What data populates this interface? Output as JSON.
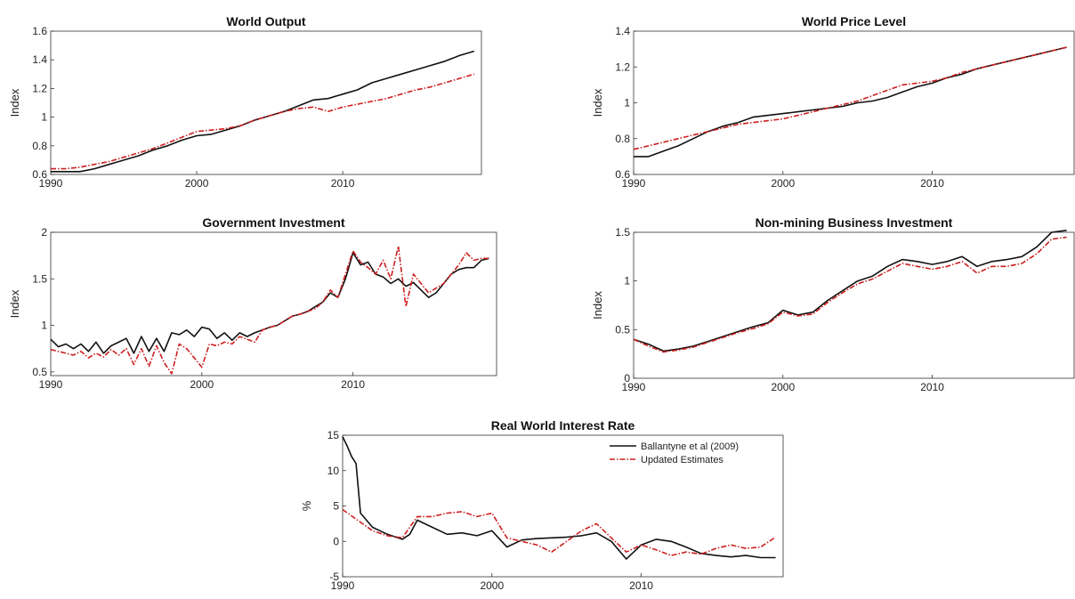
{
  "chart_data": [
    {
      "type": "line",
      "title": "World Output",
      "ylabel": "Index",
      "xlabel": "",
      "xlim": [
        1990,
        2019.5
      ],
      "ylim": [
        0.6,
        1.6
      ],
      "xticks": [
        1990,
        2000,
        2010
      ],
      "yticks": [
        "0.6",
        "0.8",
        "1",
        "1.2",
        "1.4",
        "1.6"
      ],
      "series": [
        {
          "style": "solid",
          "color": "#111111",
          "x": [
            1990,
            1991,
            1992,
            1993,
            1994,
            1995,
            1996,
            1997,
            1998,
            1999,
            2000,
            2001,
            2002,
            2003,
            2004,
            2005,
            2006,
            2007,
            2008,
            2009,
            2010,
            2011,
            2012,
            2013,
            2014,
            2015,
            2016,
            2017,
            2018,
            2019
          ],
          "y": [
            0.62,
            0.62,
            0.62,
            0.64,
            0.67,
            0.7,
            0.73,
            0.77,
            0.8,
            0.84,
            0.87,
            0.88,
            0.91,
            0.94,
            0.98,
            1.01,
            1.04,
            1.08,
            1.12,
            1.13,
            1.16,
            1.19,
            1.24,
            1.27,
            1.3,
            1.33,
            1.36,
            1.39,
            1.43,
            1.46
          ]
        },
        {
          "style": "dashed",
          "color": "#cc1f1f",
          "x": [
            1990,
            1991,
            1992,
            1993,
            1994,
            1995,
            1996,
            1997,
            1998,
            1999,
            2000,
            2001,
            2002,
            2003,
            2004,
            2005,
            2006,
            2007,
            2008,
            2009,
            2010,
            2011,
            2012,
            2013,
            2014,
            2015,
            2016,
            2017,
            2018,
            2019
          ],
          "y": [
            0.64,
            0.64,
            0.65,
            0.67,
            0.69,
            0.72,
            0.75,
            0.78,
            0.82,
            0.86,
            0.9,
            0.91,
            0.92,
            0.94,
            0.98,
            1.01,
            1.04,
            1.06,
            1.07,
            1.04,
            1.07,
            1.09,
            1.11,
            1.13,
            1.16,
            1.19,
            1.21,
            1.24,
            1.27,
            1.3
          ]
        }
      ]
    },
    {
      "type": "line",
      "title": "World Price Level",
      "ylabel": "Index",
      "xlabel": "",
      "xlim": [
        1990,
        2019.5
      ],
      "ylim": [
        0.6,
        1.4
      ],
      "xticks": [
        1990,
        2000,
        2010
      ],
      "yticks": [
        "0.6",
        "0.8",
        "1",
        "1.2",
        "1.4"
      ],
      "series": [
        {
          "style": "solid",
          "color": "#111111",
          "x": [
            1990,
            1991,
            1992,
            1993,
            1994,
            1995,
            1996,
            1997,
            1998,
            1999,
            2000,
            2001,
            2002,
            2003,
            2004,
            2005,
            2006,
            2007,
            2008,
            2009,
            2010,
            2011,
            2012,
            2013,
            2014,
            2015,
            2016,
            2017,
            2018,
            2019
          ],
          "y": [
            0.7,
            0.7,
            0.73,
            0.76,
            0.8,
            0.84,
            0.87,
            0.89,
            0.92,
            0.93,
            0.94,
            0.95,
            0.96,
            0.97,
            0.98,
            1.0,
            1.01,
            1.03,
            1.06,
            1.09,
            1.11,
            1.14,
            1.16,
            1.19,
            1.21,
            1.23,
            1.25,
            1.27,
            1.29,
            1.31
          ]
        },
        {
          "style": "dashed",
          "color": "#cc1f1f",
          "x": [
            1990,
            1991,
            1992,
            1993,
            1994,
            1995,
            1996,
            1997,
            1998,
            1999,
            2000,
            2001,
            2002,
            2003,
            2004,
            2005,
            2006,
            2007,
            2008,
            2009,
            2010,
            2011,
            2012,
            2013,
            2014,
            2015,
            2016,
            2017,
            2018,
            2019
          ],
          "y": [
            0.74,
            0.76,
            0.78,
            0.8,
            0.82,
            0.84,
            0.86,
            0.88,
            0.89,
            0.9,
            0.91,
            0.93,
            0.95,
            0.97,
            0.99,
            1.01,
            1.04,
            1.07,
            1.1,
            1.11,
            1.12,
            1.14,
            1.17,
            1.19,
            1.21,
            1.23,
            1.25,
            1.27,
            1.29,
            1.31
          ]
        }
      ]
    },
    {
      "type": "line",
      "title": "Government Investment",
      "ylabel": "Index",
      "xlabel": "",
      "xlim": [
        1990,
        2019.5
      ],
      "ylim": [
        0.46,
        2.0
      ],
      "xticks": [
        1990,
        2000,
        2010
      ],
      "yticks": [
        "0.5",
        "1",
        "1.5",
        "2"
      ],
      "series": [
        {
          "style": "solid",
          "color": "#111111",
          "x": [
            1990,
            1990.5,
            1991,
            1991.5,
            1992,
            1992.5,
            1993,
            1993.5,
            1994,
            1994.5,
            1995,
            1995.5,
            1996,
            1996.5,
            1997,
            1997.5,
            1998,
            1998.5,
            1999,
            1999.5,
            2000,
            2000.5,
            2001,
            2001.5,
            2002,
            2002.5,
            2003,
            2003.5,
            2004,
            2004.5,
            2005,
            2005.5,
            2006,
            2006.5,
            2007,
            2007.5,
            2008,
            2008.5,
            2009,
            2009.5,
            2010,
            2010.5,
            2011,
            2011.5,
            2012,
            2012.5,
            2013,
            2013.5,
            2014,
            2014.5,
            2015,
            2015.5,
            2016,
            2016.5,
            2017,
            2017.5,
            2018,
            2018.5,
            2019
          ],
          "y": [
            0.85,
            0.77,
            0.8,
            0.75,
            0.8,
            0.72,
            0.82,
            0.7,
            0.78,
            0.82,
            0.86,
            0.7,
            0.88,
            0.72,
            0.86,
            0.72,
            0.92,
            0.9,
            0.95,
            0.88,
            0.98,
            0.96,
            0.86,
            0.92,
            0.84,
            0.92,
            0.88,
            0.92,
            0.95,
            0.98,
            1.0,
            1.05,
            1.1,
            1.12,
            1.15,
            1.2,
            1.25,
            1.35,
            1.3,
            1.5,
            1.78,
            1.65,
            1.68,
            1.55,
            1.52,
            1.45,
            1.5,
            1.42,
            1.46,
            1.38,
            1.3,
            1.35,
            1.45,
            1.55,
            1.6,
            1.62,
            1.62,
            1.7,
            1.72
          ]
        },
        {
          "style": "dashed",
          "color": "#cc1f1f",
          "x": [
            1990,
            1990.5,
            1991,
            1991.5,
            1992,
            1992.5,
            1993,
            1993.5,
            1994,
            1994.5,
            1995,
            1995.5,
            1996,
            1996.5,
            1997,
            1997.5,
            1998,
            1998.5,
            1999,
            1999.5,
            2000,
            2000.5,
            2001,
            2001.5,
            2002,
            2002.5,
            2003,
            2003.5,
            2004,
            2004.5,
            2005,
            2005.5,
            2006,
            2006.5,
            2007,
            2007.5,
            2008,
            2008.5,
            2009,
            2009.5,
            2010,
            2010.5,
            2011,
            2011.5,
            2012,
            2012.5,
            2013,
            2013.5,
            2014,
            2014.5,
            2015,
            2015.5,
            2016,
            2016.5,
            2017,
            2017.5,
            2018,
            2018.5,
            2019
          ],
          "y": [
            0.74,
            0.72,
            0.7,
            0.68,
            0.72,
            0.65,
            0.7,
            0.66,
            0.74,
            0.68,
            0.75,
            0.58,
            0.75,
            0.56,
            0.78,
            0.6,
            0.48,
            0.8,
            0.75,
            0.65,
            0.55,
            0.8,
            0.78,
            0.82,
            0.8,
            0.88,
            0.85,
            0.82,
            0.95,
            0.98,
            1.0,
            1.05,
            1.1,
            1.12,
            1.15,
            1.18,
            1.25,
            1.38,
            1.3,
            1.55,
            1.8,
            1.68,
            1.62,
            1.55,
            1.7,
            1.5,
            1.85,
            1.2,
            1.55,
            1.45,
            1.35,
            1.4,
            1.45,
            1.55,
            1.65,
            1.78,
            1.7,
            1.72,
            1.72
          ]
        }
      ]
    },
    {
      "type": "line",
      "title": "Non-mining Business Investment",
      "ylabel": "Index",
      "xlabel": "",
      "xlim": [
        1990,
        2019.5
      ],
      "ylim": [
        0,
        1.5
      ],
      "xticks": [
        1990,
        2000,
        2010
      ],
      "yticks": [
        "0",
        "0.5",
        "1",
        "1.5"
      ],
      "series": [
        {
          "style": "solid",
          "color": "#111111",
          "x": [
            1990,
            1991,
            1992,
            1993,
            1994,
            1995,
            1996,
            1997,
            1998,
            1999,
            2000,
            2001,
            2002,
            2003,
            2004,
            2005,
            2006,
            2007,
            2008,
            2009,
            2010,
            2011,
            2012,
            2013,
            2014,
            2015,
            2016,
            2017,
            2018,
            2019
          ],
          "y": [
            0.4,
            0.35,
            0.28,
            0.3,
            0.33,
            0.38,
            0.43,
            0.48,
            0.53,
            0.57,
            0.7,
            0.65,
            0.68,
            0.8,
            0.9,
            1.0,
            1.05,
            1.15,
            1.22,
            1.2,
            1.17,
            1.2,
            1.25,
            1.15,
            1.2,
            1.22,
            1.25,
            1.35,
            1.5,
            1.52
          ]
        },
        {
          "style": "dashed",
          "color": "#cc1f1f",
          "x": [
            1990,
            1991,
            1992,
            1993,
            1994,
            1995,
            1996,
            1997,
            1998,
            1999,
            2000,
            2001,
            2002,
            2003,
            2004,
            2005,
            2006,
            2007,
            2008,
            2009,
            2010,
            2011,
            2012,
            2013,
            2014,
            2015,
            2016,
            2017,
            2018,
            2019
          ],
          "y": [
            0.4,
            0.33,
            0.27,
            0.29,
            0.32,
            0.37,
            0.42,
            0.47,
            0.51,
            0.56,
            0.68,
            0.64,
            0.66,
            0.78,
            0.88,
            0.97,
            1.02,
            1.1,
            1.18,
            1.15,
            1.12,
            1.15,
            1.2,
            1.08,
            1.15,
            1.15,
            1.18,
            1.28,
            1.43,
            1.45
          ]
        }
      ]
    },
    {
      "type": "line",
      "title": "Real World Interest Rate",
      "ylabel": "%",
      "xlabel": "",
      "xlim": [
        1990,
        2019.5
      ],
      "ylim": [
        -5,
        15
      ],
      "xticks": [
        1990,
        2000,
        2010
      ],
      "yticks": [
        "-5",
        "0",
        "5",
        "10",
        "15"
      ],
      "legend": {
        "position": "top-right",
        "entries": [
          "Ballantyne et al (2009)",
          "Updated Estimates"
        ]
      },
      "series": [
        {
          "name": "Ballantyne et al (2009)",
          "style": "solid",
          "color": "#111111",
          "x": [
            1990,
            1990.3,
            1990.6,
            1990.9,
            1991.2,
            1991.6,
            1992,
            1993,
            1994,
            1994.5,
            1995,
            1996,
            1997,
            1998,
            1999,
            2000,
            2001,
            2002,
            2003,
            2004,
            2005,
            2006,
            2007,
            2008,
            2009,
            2010,
            2011,
            2012,
            2013,
            2014,
            2015,
            2016,
            2017,
            2018,
            2019
          ],
          "y": [
            14.8,
            13.5,
            12.0,
            11.0,
            4.0,
            3.0,
            2.0,
            1.0,
            0.3,
            1.0,
            3.0,
            2.0,
            1.0,
            1.2,
            0.8,
            1.5,
            -0.8,
            0.2,
            0.4,
            0.5,
            0.6,
            0.8,
            1.2,
            0.0,
            -2.5,
            -0.5,
            0.3,
            0.0,
            -0.8,
            -1.7,
            -2.0,
            -2.2,
            -2.0,
            -2.3,
            -2.3
          ]
        },
        {
          "name": "Updated Estimates",
          "style": "dashed",
          "color": "#cc1f1f",
          "x": [
            1990,
            1991,
            1992,
            1993,
            1994,
            1995,
            1996,
            1997,
            1998,
            1999,
            2000,
            2001,
            2002,
            2003,
            2004,
            2005,
            2006,
            2007,
            2008,
            2009,
            2010,
            2011,
            2012,
            2013,
            2014,
            2015,
            2016,
            2017,
            2018,
            2019
          ],
          "y": [
            4.5,
            3.0,
            1.5,
            0.8,
            0.5,
            3.5,
            3.5,
            4.0,
            4.2,
            3.5,
            4.0,
            0.5,
            0.0,
            -0.5,
            -1.5,
            0.0,
            1.5,
            2.5,
            0.5,
            -1.5,
            -0.5,
            -1.2,
            -2.0,
            -1.5,
            -1.8,
            -1.0,
            -0.5,
            -1.0,
            -0.8,
            0.6
          ]
        }
      ]
    }
  ]
}
